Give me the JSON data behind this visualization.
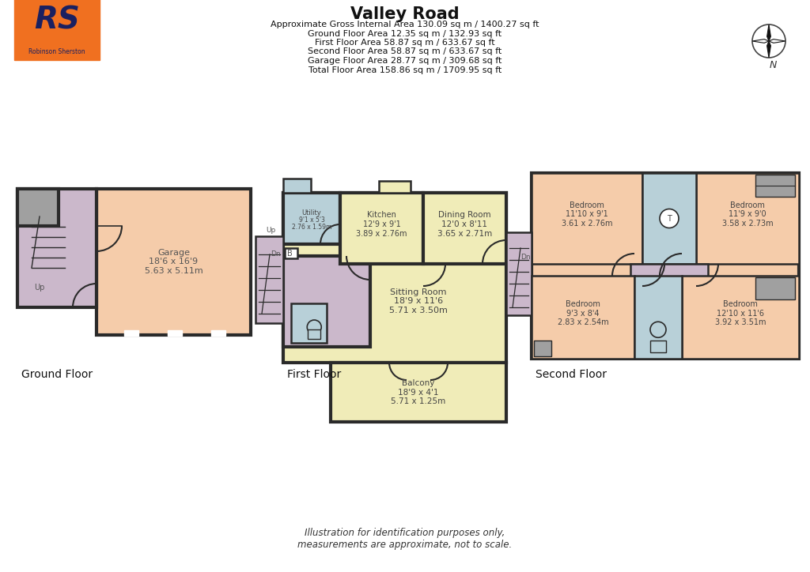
{
  "title": "Valley Road",
  "subtitle_lines": [
    "Approximate Gross Internal Area 130.09 sq m / 1400.27 sq ft",
    "Ground Floor Area 12.35 sq m / 132.93 sq ft",
    "First Floor Area 58.87 sq m / 633.67 sq ft",
    "Second Floor Area 58.87 sq m / 633.67 sq ft",
    "Garage Floor Area 28.77 sq m / 309.68 sq ft",
    "Total Floor Area 158.86 sq m / 1709.95 sq ft"
  ],
  "floor_labels": [
    "Ground Floor",
    "First Floor",
    "Second Floor"
  ],
  "footer": "Illustration for identification purposes only,\nmeasurements are approximate, not to scale.",
  "bg_color": "#ffffff",
  "wall_color": "#2a2a2a",
  "colors": {
    "purple": "#cbb8cb",
    "peach": "#f5ccaa",
    "yellow": "#f0ecb8",
    "blue_grey": "#b8d0d8",
    "grey": "#a0a0a0",
    "white": "#ffffff",
    "dark_grey": "#606060",
    "orange": "#f07020"
  }
}
